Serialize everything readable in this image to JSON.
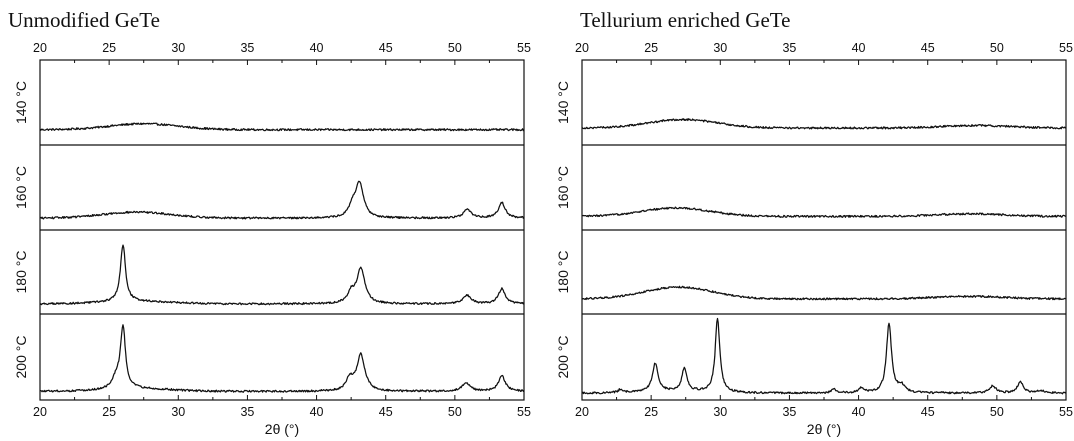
{
  "chart_data": [
    {
      "type": "line",
      "title": "Unmodified GeTe",
      "xlabel": "2θ (°)",
      "xlim": [
        20,
        55
      ],
      "xticks": [
        20,
        25,
        30,
        35,
        40,
        45,
        50,
        55
      ],
      "series": [
        {
          "name": "140 °C",
          "baseline": 0.18,
          "humps": [
            {
              "c": 27.5,
              "w": 3.5,
              "h": 0.07
            }
          ],
          "peaks": []
        },
        {
          "name": "160 °C",
          "baseline": 0.14,
          "humps": [
            {
              "c": 27.0,
              "w": 3.5,
              "h": 0.07
            }
          ],
          "peaks": [
            {
              "c": 43.1,
              "w": 0.35,
              "h": 0.4
            },
            {
              "c": 42.6,
              "w": 0.3,
              "h": 0.12
            },
            {
              "c": 50.9,
              "w": 0.35,
              "h": 0.1
            },
            {
              "c": 53.4,
              "w": 0.3,
              "h": 0.18
            }
          ]
        },
        {
          "name": "180 °C",
          "baseline": 0.12,
          "humps": [
            {
              "c": 27.0,
              "w": 3.5,
              "h": 0.03
            }
          ],
          "peaks": [
            {
              "c": 26.0,
              "w": 0.22,
              "h": 0.68
            },
            {
              "c": 43.2,
              "w": 0.35,
              "h": 0.42
            },
            {
              "c": 42.5,
              "w": 0.3,
              "h": 0.12
            },
            {
              "c": 50.9,
              "w": 0.35,
              "h": 0.1
            },
            {
              "c": 53.4,
              "w": 0.3,
              "h": 0.18
            }
          ]
        },
        {
          "name": "200 °C",
          "baseline": 0.1,
          "humps": [
            {
              "c": 27.0,
              "w": 3.5,
              "h": 0.03
            }
          ],
          "peaks": [
            {
              "c": 26.0,
              "w": 0.22,
              "h": 0.72
            },
            {
              "c": 25.5,
              "w": 0.3,
              "h": 0.12
            },
            {
              "c": 43.2,
              "w": 0.35,
              "h": 0.42
            },
            {
              "c": 42.4,
              "w": 0.3,
              "h": 0.14
            },
            {
              "c": 50.8,
              "w": 0.35,
              "h": 0.1
            },
            {
              "c": 53.4,
              "w": 0.3,
              "h": 0.18
            }
          ]
        }
      ]
    },
    {
      "type": "line",
      "title": "Tellurium enriched GeTe",
      "xlabel": "2θ (°)",
      "xlim": [
        20,
        55
      ],
      "xticks": [
        20,
        25,
        30,
        35,
        40,
        45,
        50,
        55
      ],
      "series": [
        {
          "name": "140 °C",
          "baseline": 0.2,
          "humps": [
            {
              "c": 27.3,
              "w": 3.5,
              "h": 0.1
            },
            {
              "c": 48.5,
              "w": 3.5,
              "h": 0.03
            }
          ],
          "peaks": []
        },
        {
          "name": "160 °C",
          "baseline": 0.16,
          "humps": [
            {
              "c": 26.8,
              "w": 3.5,
              "h": 0.1
            },
            {
              "c": 48.0,
              "w": 3.5,
              "h": 0.03
            }
          ],
          "peaks": []
        },
        {
          "name": "180 °C",
          "baseline": 0.18,
          "humps": [
            {
              "c": 27.0,
              "w": 3.5,
              "h": 0.14
            },
            {
              "c": 48.0,
              "w": 3.5,
              "h": 0.03
            }
          ],
          "peaks": []
        },
        {
          "name": "200 °C",
          "baseline": 0.08,
          "humps": [
            {
              "c": 27.0,
              "w": 3.5,
              "h": 0.02
            }
          ],
          "peaks": [
            {
              "c": 22.8,
              "w": 0.2,
              "h": 0.04
            },
            {
              "c": 25.3,
              "w": 0.25,
              "h": 0.33
            },
            {
              "c": 27.4,
              "w": 0.22,
              "h": 0.27
            },
            {
              "c": 29.8,
              "w": 0.2,
              "h": 0.85
            },
            {
              "c": 38.2,
              "w": 0.2,
              "h": 0.05
            },
            {
              "c": 40.2,
              "w": 0.22,
              "h": 0.06
            },
            {
              "c": 42.2,
              "w": 0.22,
              "h": 0.8
            },
            {
              "c": 43.1,
              "w": 0.3,
              "h": 0.08
            },
            {
              "c": 49.7,
              "w": 0.3,
              "h": 0.08
            },
            {
              "c": 51.7,
              "w": 0.25,
              "h": 0.13
            },
            {
              "c": 53.2,
              "w": 0.3,
              "h": 0.03
            }
          ]
        }
      ]
    }
  ]
}
